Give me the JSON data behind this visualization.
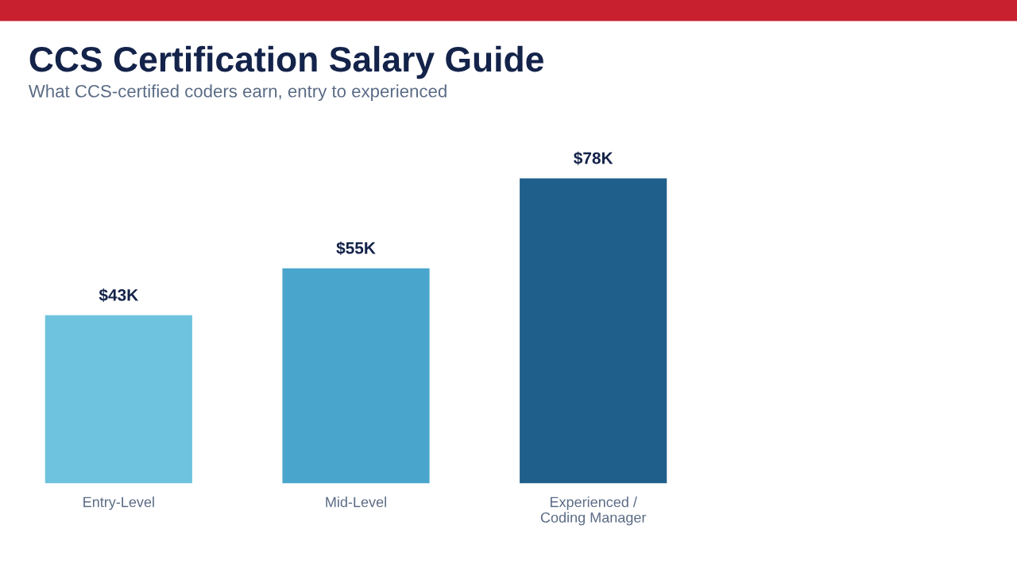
{
  "chart_data": {
    "type": "bar",
    "title": "CCS Certification Salary Guide",
    "subtitle": "What CCS-certified coders earn, entry to experienced",
    "categories": [
      "Entry-Level",
      "Mid-Level",
      "Experienced /\nCoding Manager"
    ],
    "values": [
      43,
      55,
      78
    ],
    "colors": [
      "#6ec3de",
      "#4aa5cc",
      "#1f5f8b"
    ],
    "value_labels": [
      "$43K",
      "$55K",
      "$78K"
    ],
    "grid": false,
    "legend": false
  }
}
